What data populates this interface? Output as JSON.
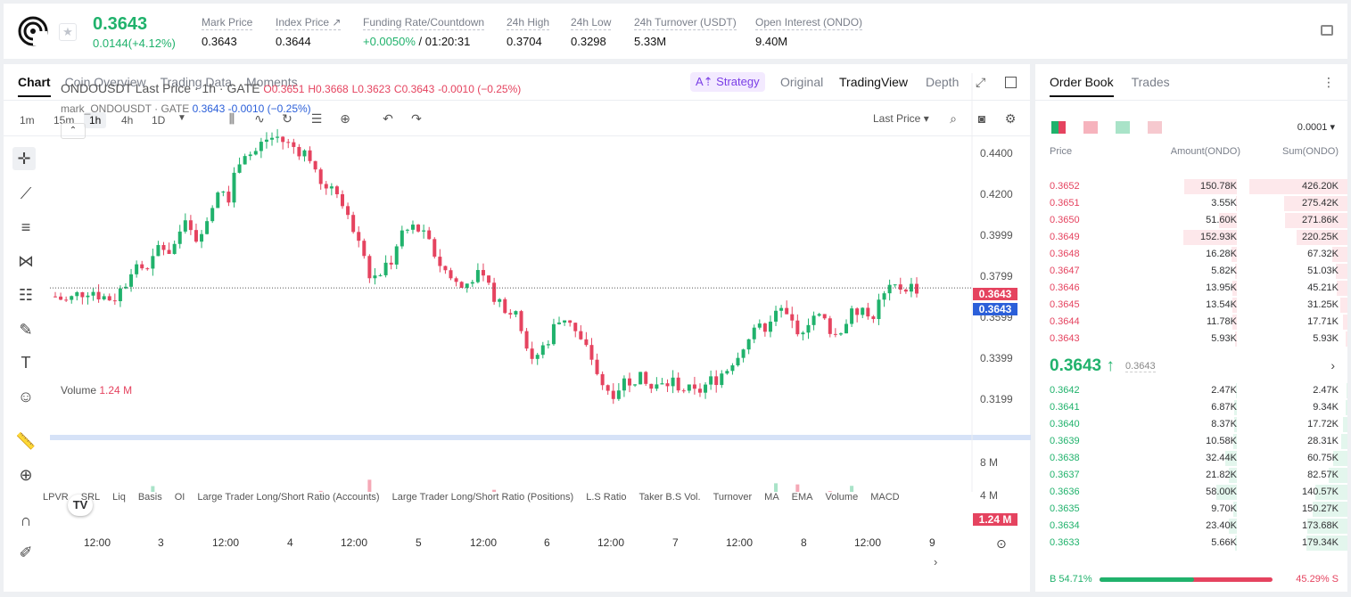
{
  "header": {
    "price": "0.3643",
    "change": "0.0144(+4.12%)",
    "stats": [
      {
        "label": "Mark Price",
        "value": "0.3643"
      },
      {
        "label": "Index Price ↗",
        "value": "0.3644"
      },
      {
        "label": "Funding Rate/Countdown",
        "value_green": "+0.0050%",
        "value": " / 01:20:31"
      },
      {
        "label": "24h High",
        "value": "0.3704"
      },
      {
        "label": "24h Low",
        "value": "0.3298"
      },
      {
        "label": "24h Turnover (USDT)",
        "value": "5.33M"
      },
      {
        "label": "Open Interest (ONDO)",
        "value": "9.40M"
      }
    ]
  },
  "chart_tabs": [
    "Chart",
    "Coin Overview",
    "Trading Data",
    "Moments"
  ],
  "view_tabs": {
    "strategy": "A⇡ Strategy",
    "original": "Original",
    "tradingview": "TradingView",
    "depth": "Depth"
  },
  "timeframes": [
    "1m",
    "15m",
    "1h",
    "4h",
    "1D"
  ],
  "price_type": "Last Price ▾",
  "legend": {
    "title": "ONDOUSDT Last Price · 1h · GATE",
    "o": "O0.3651",
    "h": "H0.3668",
    "l": "L0.3623",
    "c": "C0.3643",
    "chg": "-0.0010 (−0.25%)",
    "mark": "mark_ONDOUSDT · GATE",
    "mark_val": "0.3643  -0.0010 (−0.25%)"
  },
  "volume_label": {
    "name": "Volume",
    "value": "1.24 M"
  },
  "price_axis": [
    "0.4400",
    "0.4200",
    "0.3999",
    "0.3799",
    "0.3599",
    "0.3399",
    "0.3199"
  ],
  "price_tags": {
    "last": "0.3643",
    "mark": "0.3643"
  },
  "volume_axis": [
    "8 M",
    "4 M"
  ],
  "volume_tag": "1.24 M",
  "x_axis": [
    "12:00",
    "3",
    "12:00",
    "4",
    "12:00",
    "5",
    "12:00",
    "6",
    "12:00",
    "7",
    "12:00",
    "8",
    "12:00",
    "9"
  ],
  "indicators": [
    "LPVR",
    "SRL",
    "Liq",
    "Basis",
    "OI",
    "Large Trader Long/Short Ratio (Accounts)",
    "Large Trader Long/Short Ratio (Positions)",
    "L.S Ratio",
    "Taker B.S Vol.",
    "Turnover",
    "MA",
    "EMA",
    "Volume",
    "MACD"
  ],
  "orderbook": {
    "tabs": [
      "Order Book",
      "Trades"
    ],
    "precision": "0.0001 ▾",
    "headers": [
      "Price",
      "Amount(ONDO)",
      "Sum(ONDO)"
    ],
    "asks": [
      [
        "0.3652",
        "150.78K",
        "426.20K"
      ],
      [
        "0.3651",
        "3.55K",
        "275.42K"
      ],
      [
        "0.3650",
        "51.60K",
        "271.86K"
      ],
      [
        "0.3649",
        "152.93K",
        "220.25K"
      ],
      [
        "0.3648",
        "16.28K",
        "67.32K"
      ],
      [
        "0.3647",
        "5.82K",
        "51.03K"
      ],
      [
        "0.3646",
        "13.95K",
        "45.21K"
      ],
      [
        "0.3645",
        "13.54K",
        "31.25K"
      ],
      [
        "0.3644",
        "11.78K",
        "17.71K"
      ],
      [
        "0.3643",
        "5.93K",
        "5.93K"
      ]
    ],
    "mid_price": "0.3643 ↑",
    "mid_mark": "0.3643",
    "bids": [
      [
        "0.3642",
        "2.47K",
        "2.47K"
      ],
      [
        "0.3641",
        "6.87K",
        "9.34K"
      ],
      [
        "0.3640",
        "8.37K",
        "17.72K"
      ],
      [
        "0.3639",
        "10.58K",
        "28.31K"
      ],
      [
        "0.3638",
        "32.44K",
        "60.75K"
      ],
      [
        "0.3637",
        "21.82K",
        "82.57K"
      ],
      [
        "0.3636",
        "58.00K",
        "140.57K"
      ],
      [
        "0.3635",
        "9.70K",
        "150.27K"
      ],
      [
        "0.3634",
        "23.40K",
        "173.68K"
      ],
      [
        "0.3633",
        "5.66K",
        "179.34K"
      ]
    ],
    "buy_ratio": "B 54.71%",
    "sell_ratio": "45.29% S",
    "buy_pct": 54.71
  },
  "colors": {
    "up": "#20b26c",
    "down": "#e5435f",
    "accent": "#7a3ee6"
  },
  "chart_data": {
    "type": "candlestick",
    "ylim": [
      0.31,
      0.445
    ],
    "close_path": [
      0.361,
      0.359,
      0.362,
      0.364,
      0.361,
      0.36,
      0.366,
      0.374,
      0.37,
      0.382,
      0.378,
      0.39,
      0.383,
      0.392,
      0.404,
      0.4,
      0.418,
      0.416,
      0.422,
      0.423,
      0.42,
      0.418,
      0.415,
      0.401,
      0.406,
      0.392,
      0.386,
      0.368,
      0.372,
      0.376,
      0.386,
      0.388,
      0.382,
      0.374,
      0.368,
      0.364,
      0.37,
      0.365,
      0.36,
      0.356,
      0.35,
      0.336,
      0.342,
      0.35,
      0.354,
      0.344,
      0.338,
      0.326,
      0.324,
      0.329,
      0.33,
      0.325,
      0.326,
      0.328,
      0.325,
      0.323,
      0.327,
      0.33,
      0.335,
      0.342,
      0.346,
      0.35,
      0.357,
      0.352,
      0.348,
      0.354,
      0.352,
      0.346,
      0.352,
      0.356,
      0.352,
      0.36,
      0.364,
      0.365,
      0.3643
    ],
    "volume_max": 10
  }
}
